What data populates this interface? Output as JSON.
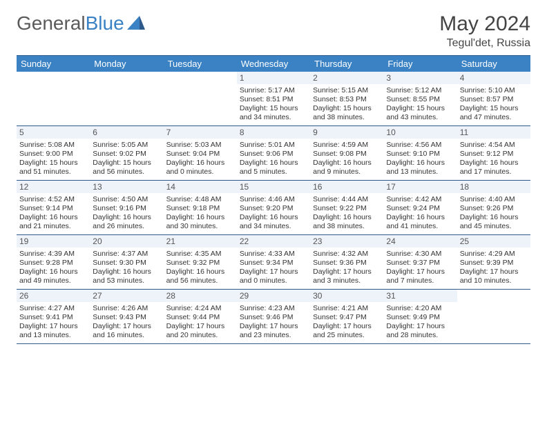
{
  "logo": {
    "text1": "General",
    "text2": "Blue"
  },
  "title": "May 2024",
  "location": "Tegul'det, Russia",
  "colors": {
    "header_bg": "#3a82c4",
    "rule": "#2d5a8a",
    "daynum_bg": "#edf3f9",
    "text": "#333333"
  },
  "dow": [
    "Sunday",
    "Monday",
    "Tuesday",
    "Wednesday",
    "Thursday",
    "Friday",
    "Saturday"
  ],
  "weeks": [
    [
      {
        "n": "",
        "sr": "",
        "ss": "",
        "dl": ""
      },
      {
        "n": "",
        "sr": "",
        "ss": "",
        "dl": ""
      },
      {
        "n": "",
        "sr": "",
        "ss": "",
        "dl": ""
      },
      {
        "n": "1",
        "sr": "Sunrise: 5:17 AM",
        "ss": "Sunset: 8:51 PM",
        "dl": "Daylight: 15 hours and 34 minutes."
      },
      {
        "n": "2",
        "sr": "Sunrise: 5:15 AM",
        "ss": "Sunset: 8:53 PM",
        "dl": "Daylight: 15 hours and 38 minutes."
      },
      {
        "n": "3",
        "sr": "Sunrise: 5:12 AM",
        "ss": "Sunset: 8:55 PM",
        "dl": "Daylight: 15 hours and 43 minutes."
      },
      {
        "n": "4",
        "sr": "Sunrise: 5:10 AM",
        "ss": "Sunset: 8:57 PM",
        "dl": "Daylight: 15 hours and 47 minutes."
      }
    ],
    [
      {
        "n": "5",
        "sr": "Sunrise: 5:08 AM",
        "ss": "Sunset: 9:00 PM",
        "dl": "Daylight: 15 hours and 51 minutes."
      },
      {
        "n": "6",
        "sr": "Sunrise: 5:05 AM",
        "ss": "Sunset: 9:02 PM",
        "dl": "Daylight: 15 hours and 56 minutes."
      },
      {
        "n": "7",
        "sr": "Sunrise: 5:03 AM",
        "ss": "Sunset: 9:04 PM",
        "dl": "Daylight: 16 hours and 0 minutes."
      },
      {
        "n": "8",
        "sr": "Sunrise: 5:01 AM",
        "ss": "Sunset: 9:06 PM",
        "dl": "Daylight: 16 hours and 5 minutes."
      },
      {
        "n": "9",
        "sr": "Sunrise: 4:59 AM",
        "ss": "Sunset: 9:08 PM",
        "dl": "Daylight: 16 hours and 9 minutes."
      },
      {
        "n": "10",
        "sr": "Sunrise: 4:56 AM",
        "ss": "Sunset: 9:10 PM",
        "dl": "Daylight: 16 hours and 13 minutes."
      },
      {
        "n": "11",
        "sr": "Sunrise: 4:54 AM",
        "ss": "Sunset: 9:12 PM",
        "dl": "Daylight: 16 hours and 17 minutes."
      }
    ],
    [
      {
        "n": "12",
        "sr": "Sunrise: 4:52 AM",
        "ss": "Sunset: 9:14 PM",
        "dl": "Daylight: 16 hours and 21 minutes."
      },
      {
        "n": "13",
        "sr": "Sunrise: 4:50 AM",
        "ss": "Sunset: 9:16 PM",
        "dl": "Daylight: 16 hours and 26 minutes."
      },
      {
        "n": "14",
        "sr": "Sunrise: 4:48 AM",
        "ss": "Sunset: 9:18 PM",
        "dl": "Daylight: 16 hours and 30 minutes."
      },
      {
        "n": "15",
        "sr": "Sunrise: 4:46 AM",
        "ss": "Sunset: 9:20 PM",
        "dl": "Daylight: 16 hours and 34 minutes."
      },
      {
        "n": "16",
        "sr": "Sunrise: 4:44 AM",
        "ss": "Sunset: 9:22 PM",
        "dl": "Daylight: 16 hours and 38 minutes."
      },
      {
        "n": "17",
        "sr": "Sunrise: 4:42 AM",
        "ss": "Sunset: 9:24 PM",
        "dl": "Daylight: 16 hours and 41 minutes."
      },
      {
        "n": "18",
        "sr": "Sunrise: 4:40 AM",
        "ss": "Sunset: 9:26 PM",
        "dl": "Daylight: 16 hours and 45 minutes."
      }
    ],
    [
      {
        "n": "19",
        "sr": "Sunrise: 4:39 AM",
        "ss": "Sunset: 9:28 PM",
        "dl": "Daylight: 16 hours and 49 minutes."
      },
      {
        "n": "20",
        "sr": "Sunrise: 4:37 AM",
        "ss": "Sunset: 9:30 PM",
        "dl": "Daylight: 16 hours and 53 minutes."
      },
      {
        "n": "21",
        "sr": "Sunrise: 4:35 AM",
        "ss": "Sunset: 9:32 PM",
        "dl": "Daylight: 16 hours and 56 minutes."
      },
      {
        "n": "22",
        "sr": "Sunrise: 4:33 AM",
        "ss": "Sunset: 9:34 PM",
        "dl": "Daylight: 17 hours and 0 minutes."
      },
      {
        "n": "23",
        "sr": "Sunrise: 4:32 AM",
        "ss": "Sunset: 9:36 PM",
        "dl": "Daylight: 17 hours and 3 minutes."
      },
      {
        "n": "24",
        "sr": "Sunrise: 4:30 AM",
        "ss": "Sunset: 9:37 PM",
        "dl": "Daylight: 17 hours and 7 minutes."
      },
      {
        "n": "25",
        "sr": "Sunrise: 4:29 AM",
        "ss": "Sunset: 9:39 PM",
        "dl": "Daylight: 17 hours and 10 minutes."
      }
    ],
    [
      {
        "n": "26",
        "sr": "Sunrise: 4:27 AM",
        "ss": "Sunset: 9:41 PM",
        "dl": "Daylight: 17 hours and 13 minutes."
      },
      {
        "n": "27",
        "sr": "Sunrise: 4:26 AM",
        "ss": "Sunset: 9:43 PM",
        "dl": "Daylight: 17 hours and 16 minutes."
      },
      {
        "n": "28",
        "sr": "Sunrise: 4:24 AM",
        "ss": "Sunset: 9:44 PM",
        "dl": "Daylight: 17 hours and 20 minutes."
      },
      {
        "n": "29",
        "sr": "Sunrise: 4:23 AM",
        "ss": "Sunset: 9:46 PM",
        "dl": "Daylight: 17 hours and 23 minutes."
      },
      {
        "n": "30",
        "sr": "Sunrise: 4:21 AM",
        "ss": "Sunset: 9:47 PM",
        "dl": "Daylight: 17 hours and 25 minutes."
      },
      {
        "n": "31",
        "sr": "Sunrise: 4:20 AM",
        "ss": "Sunset: 9:49 PM",
        "dl": "Daylight: 17 hours and 28 minutes."
      },
      {
        "n": "",
        "sr": "",
        "ss": "",
        "dl": ""
      }
    ]
  ]
}
